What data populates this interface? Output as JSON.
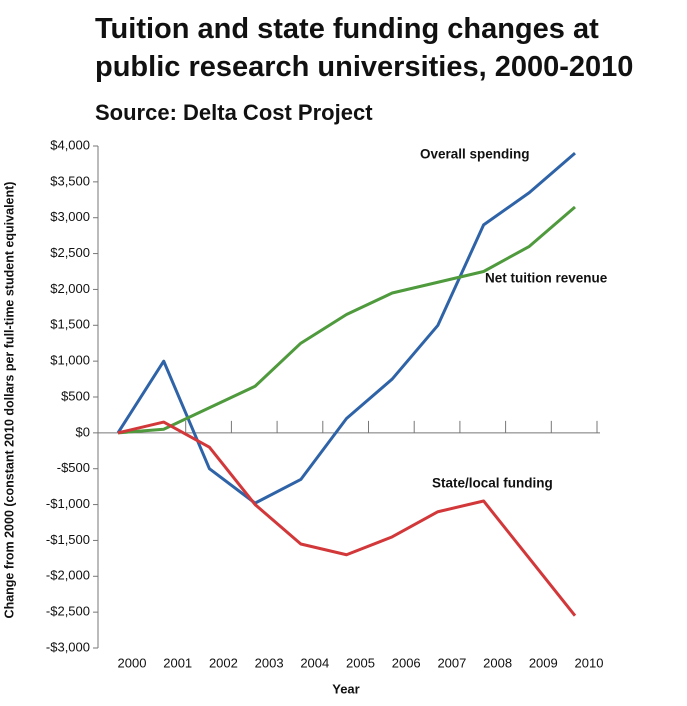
{
  "chart_data": {
    "type": "line",
    "title": "Tuition and state funding changes at public research universities, 2000-2010",
    "subtitle": "Source: Delta Cost Project",
    "x_label": "Year",
    "y_label": "Change from 2000 (constant 2010 dollars per full-time student equivalent)",
    "categories": [
      "2000",
      "2001",
      "2002",
      "2003",
      "2004",
      "2005",
      "2006",
      "2007",
      "2008",
      "2009",
      "2010"
    ],
    "series": [
      {
        "name": "Overall spending",
        "color": "#2f63a8",
        "values": [
          0,
          1000,
          -500,
          -980,
          -650,
          200,
          750,
          1500,
          2900,
          3350,
          3900
        ]
      },
      {
        "name": "Net tuition revenue",
        "color": "#4e9a3c",
        "values": [
          0,
          50,
          350,
          650,
          1250,
          1650,
          1950,
          2100,
          2250,
          2600,
          3150
        ]
      },
      {
        "name": "State/local funding",
        "color": "#d2383a",
        "values": [
          0,
          150,
          -200,
          -1000,
          -1550,
          -1700,
          -1450,
          -1100,
          -950,
          -1750,
          -2550
        ]
      }
    ],
    "ylim": [
      -3000,
      4000
    ],
    "yticks": [
      {
        "value": 4000,
        "label": "$4,000"
      },
      {
        "value": 3500,
        "label": "$3,500"
      },
      {
        "value": 3000,
        "label": "$3,000"
      },
      {
        "value": 2500,
        "label": "$2,500"
      },
      {
        "value": 2000,
        "label": "$2,000"
      },
      {
        "value": 1500,
        "label": "$1,500"
      },
      {
        "value": 1000,
        "label": "$1,000"
      },
      {
        "value": 500,
        "label": "$500"
      },
      {
        "value": 0,
        "label": "$0"
      },
      {
        "value": -500,
        "label": "-$500"
      },
      {
        "value": -1000,
        "label": "-$1,000"
      },
      {
        "value": -1500,
        "label": "-$1,500"
      },
      {
        "value": -2000,
        "label": "-$2,000"
      },
      {
        "value": -2500,
        "label": "-$2,500"
      },
      {
        "value": -3000,
        "label": "-$3,000"
      }
    ],
    "grid": false
  }
}
